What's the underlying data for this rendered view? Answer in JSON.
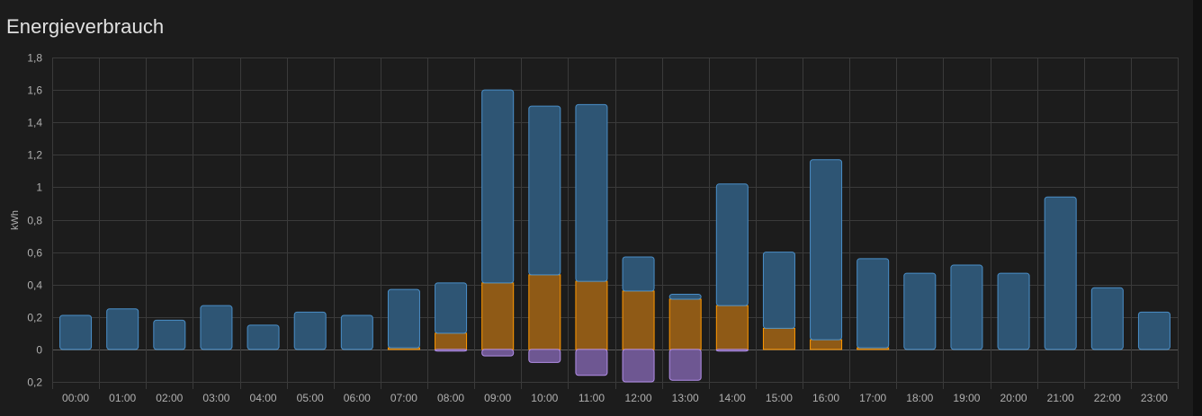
{
  "card": {
    "title": "Energieverbrauch"
  },
  "colors": {
    "background": "#1c1c1c",
    "grid": "#3a3a3a",
    "grid_zero": "#5a5a5a",
    "grid_consumption_fill": "#2e5574",
    "grid_consumption_stroke": "#4a8ec7",
    "solar_fill": "#8f5a16",
    "solar_stroke": "#ff9800",
    "return_fill": "#6e5792",
    "return_stroke": "#b28ee8"
  },
  "chart_data": {
    "type": "bar",
    "title": "Energieverbrauch",
    "ylabel": "kWh",
    "xlabel": "",
    "ylim": [
      -0.2,
      1.8
    ],
    "yticks": [
      {
        "value": 1.8,
        "label": "1,8"
      },
      {
        "value": 1.6,
        "label": "1,6"
      },
      {
        "value": 1.4,
        "label": "1,4"
      },
      {
        "value": 1.2,
        "label": "1,2"
      },
      {
        "value": 1.0,
        "label": "1"
      },
      {
        "value": 0.8,
        "label": "0,8"
      },
      {
        "value": 0.6,
        "label": "0,6"
      },
      {
        "value": 0.4,
        "label": "0,4"
      },
      {
        "value": 0.2,
        "label": "0,2"
      },
      {
        "value": 0.0,
        "label": "0"
      },
      {
        "value": -0.2,
        "label": "0,2"
      }
    ],
    "grid": true,
    "categories": [
      "00:00",
      "01:00",
      "02:00",
      "03:00",
      "04:00",
      "05:00",
      "06:00",
      "07:00",
      "08:00",
      "09:00",
      "10:00",
      "11:00",
      "12:00",
      "13:00",
      "14:00",
      "15:00",
      "16:00",
      "17:00",
      "18:00",
      "19:00",
      "20:00",
      "21:00",
      "22:00",
      "23:00"
    ],
    "series": [
      {
        "key": "grid_consumption",
        "values": [
          0.21,
          0.25,
          0.18,
          0.27,
          0.15,
          0.23,
          0.21,
          0.36,
          0.31,
          1.19,
          1.04,
          1.09,
          0.21,
          0.03,
          0.75,
          0.47,
          1.11,
          0.55,
          0.47,
          0.52,
          0.47,
          0.94,
          0.38,
          0.23
        ]
      },
      {
        "key": "solar",
        "values": [
          0,
          0,
          0,
          0,
          0,
          0,
          0,
          0.01,
          0.1,
          0.41,
          0.46,
          0.42,
          0.36,
          0.31,
          0.27,
          0.13,
          0.06,
          0.01,
          0,
          0,
          0,
          0,
          0,
          0
        ]
      },
      {
        "key": "return_to_grid",
        "values": [
          0,
          0,
          0,
          0,
          0,
          0,
          0,
          0,
          -0.01,
          -0.04,
          -0.08,
          -0.16,
          -0.2,
          -0.19,
          -0.01,
          0,
          0,
          0,
          0,
          0,
          0,
          0,
          0,
          0
        ]
      }
    ]
  }
}
